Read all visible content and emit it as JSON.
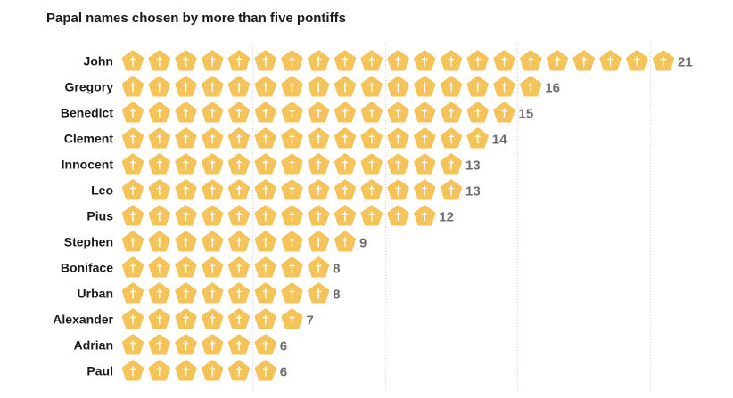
{
  "chart_data": {
    "type": "bar",
    "title": "Papal names chosen by more than five pontiffs",
    "categories": [
      "John",
      "Gregory",
      "Benedict",
      "Clement",
      "Innocent",
      "Leo",
      "Pius",
      "Stephen",
      "Boniface",
      "Urban",
      "Alexander",
      "Adrian",
      "Paul"
    ],
    "values": [
      21,
      16,
      15,
      14,
      13,
      13,
      12,
      9,
      8,
      8,
      7,
      6,
      6
    ],
    "xlabel": "",
    "ylabel": "",
    "unit_icon": "pentagon-cross-icon",
    "grid": true,
    "colors": {
      "icon_fill": "#f4c35a",
      "icon_cross": "#ffffff",
      "value_text": "#6e6e6e",
      "title_text": "#1a1a1a",
      "grid": "#d5d5d5"
    }
  }
}
